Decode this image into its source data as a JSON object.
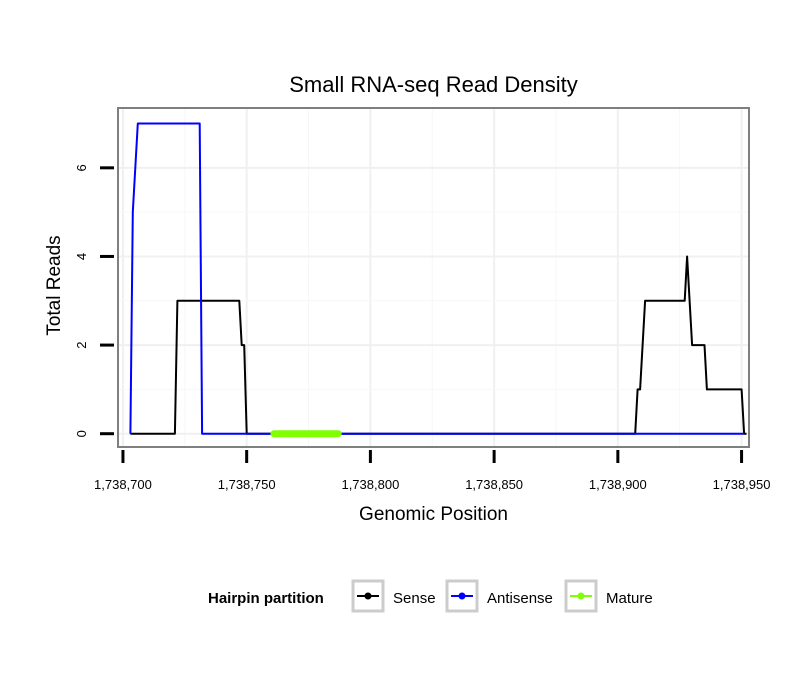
{
  "chart_data": {
    "type": "line",
    "title": "Small RNA-seq Read Density",
    "xlabel": "Genomic Position",
    "ylabel": "Total Reads",
    "xlim": [
      1738698,
      1738953
    ],
    "ylim": [
      -0.3,
      7.35
    ],
    "x_ticks": [
      1738700,
      1738750,
      1738800,
      1738850,
      1738900,
      1738950
    ],
    "x_tick_labels": [
      "1,738,700",
      "1,738,750",
      "1,738,800",
      "1,738,850",
      "1,738,900",
      "1,738,950"
    ],
    "y_ticks": [
      0,
      2,
      4,
      6
    ],
    "y_tick_labels": [
      "0",
      "2",
      "4",
      "6"
    ],
    "grid": true,
    "legend": {
      "title": "Hairpin partition",
      "position": "bottom",
      "entries": [
        "Sense",
        "Antisense",
        "Mature"
      ]
    },
    "series": [
      {
        "name": "Sense",
        "color": "#000000",
        "x": [
          1738703,
          1738721,
          1738722,
          1738747,
          1738748,
          1738749,
          1738750,
          1738751,
          1738907,
          1738908,
          1738909,
          1738910,
          1738911,
          1738916,
          1738926,
          1738927,
          1738928,
          1738929,
          1738930,
          1738934,
          1738935,
          1738936,
          1738940,
          1738945,
          1738950,
          1738951,
          1738952
        ],
        "y": [
          0,
          0,
          3,
          3,
          2,
          2,
          0,
          0,
          0,
          1,
          1,
          2,
          3,
          3,
          3,
          3,
          4,
          3,
          2,
          2,
          2,
          1,
          1,
          1,
          1,
          0,
          0
        ]
      },
      {
        "name": "Antisense",
        "color": "#0000ff",
        "x": [
          1738703,
          1738704,
          1738706,
          1738731,
          1738732,
          1738951
        ],
        "y": [
          0,
          5,
          7,
          7,
          0,
          0
        ]
      },
      {
        "name": "Mature",
        "color": "#7fff00",
        "x": [
          1738761,
          1738787
        ],
        "y": [
          0,
          0
        ]
      }
    ]
  }
}
